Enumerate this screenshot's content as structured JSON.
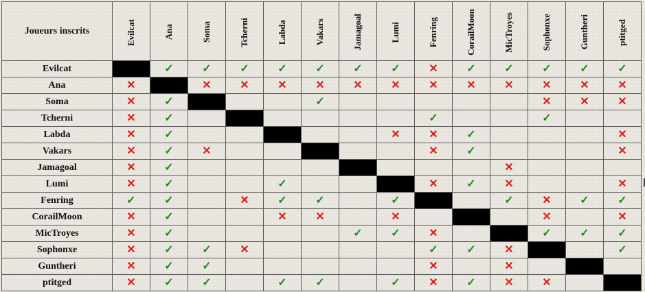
{
  "table": {
    "corner_label": "Joueurs inscrits",
    "players": [
      "Evilcat",
      "Ana",
      "Soma",
      "Tcherni",
      "Labda",
      "Vakars",
      "Jamagoal",
      "Lumi",
      "Fenring",
      "CorailMoon",
      "MicTroyes",
      "Sophonxe",
      "Guntheri",
      "ptitged"
    ],
    "symbols": {
      "yes": "✓",
      "no": "✕"
    },
    "colors": {
      "yes": "#1e8a1e",
      "no": "#e01b1b",
      "self": "#000000"
    },
    "matrix": [
      [
        "self",
        "yes",
        "yes",
        "yes",
        "yes",
        "yes",
        "yes",
        "yes",
        "no",
        "yes",
        "yes",
        "yes",
        "yes",
        "yes"
      ],
      [
        "no",
        "self",
        "no",
        "no",
        "no",
        "no",
        "no",
        "no",
        "no",
        "no",
        "no",
        "no",
        "no",
        "no"
      ],
      [
        "no",
        "yes",
        "self",
        "",
        "",
        "yes",
        "",
        "",
        "",
        "",
        "",
        "no",
        "no",
        "no"
      ],
      [
        "no",
        "yes",
        "",
        "self",
        "",
        "",
        "",
        "",
        "yes",
        "",
        "",
        "yes",
        "",
        ""
      ],
      [
        "no",
        "yes",
        "",
        "",
        "self",
        "",
        "",
        "no",
        "no",
        "yes",
        "",
        "",
        "",
        "no"
      ],
      [
        "no",
        "yes",
        "no",
        "",
        "",
        "self",
        "",
        "",
        "no",
        "yes",
        "",
        "",
        "",
        "no"
      ],
      [
        "no",
        "yes",
        "",
        "",
        "",
        "",
        "self",
        "",
        "",
        "",
        "no",
        "",
        "",
        ""
      ],
      [
        "no",
        "yes",
        "",
        "",
        "yes",
        "",
        "",
        "self",
        "no",
        "yes",
        "no",
        "",
        "",
        "no"
      ],
      [
        "yes",
        "yes",
        "",
        "no",
        "yes",
        "yes",
        "",
        "yes",
        "self",
        "",
        "yes",
        "no",
        "yes",
        "yes"
      ],
      [
        "no",
        "yes",
        "",
        "",
        "no",
        "no",
        "",
        "no",
        "",
        "self",
        "",
        "no",
        "",
        "no"
      ],
      [
        "no",
        "yes",
        "",
        "",
        "",
        "",
        "yes",
        "yes",
        "no",
        "",
        "self",
        "yes",
        "yes",
        "yes"
      ],
      [
        "no",
        "yes",
        "yes",
        "no",
        "",
        "",
        "",
        "",
        "yes",
        "yes",
        "no",
        "self",
        "",
        "yes"
      ],
      [
        "no",
        "yes",
        "yes",
        "",
        "",
        "",
        "",
        "",
        "no",
        "",
        "no",
        "",
        "self",
        ""
      ],
      [
        "no",
        "yes",
        "yes",
        "",
        "yes",
        "yes",
        "",
        "yes",
        "no",
        "yes",
        "no",
        "no",
        "",
        "self"
      ]
    ]
  }
}
